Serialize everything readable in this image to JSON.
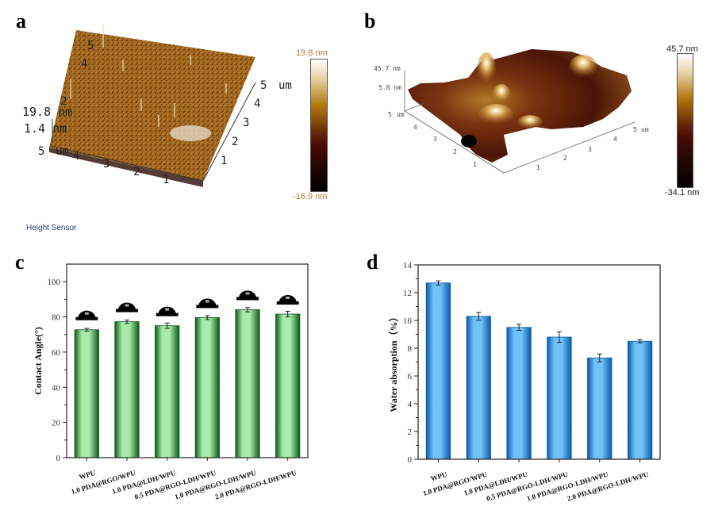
{
  "panels": {
    "a": {
      "letter": "a",
      "type": "afm-3d",
      "z_top_label": "19.8 nm",
      "z_mid_label": "1.4 nm",
      "x_axis_ticks": [
        "1",
        "2",
        "3",
        "4",
        "5"
      ],
      "x_axis_unit": "um",
      "y_axis_ticks": [
        "1",
        "2",
        "3",
        "4",
        "5"
      ],
      "y_axis_unit": "um",
      "colorbar_max": "19.8 nm",
      "colorbar_min": "-16.9 nm",
      "footer": "Height Sensor"
    },
    "b": {
      "letter": "b",
      "type": "afm-3d",
      "z_top_label": "45.7 nm",
      "z_mid_label": "5.8 nm",
      "x_axis_ticks": [
        "1",
        "2",
        "3",
        "4",
        "5"
      ],
      "x_axis_unit": "um",
      "y_axis_ticks": [
        "1",
        "2",
        "3",
        "4",
        "5"
      ],
      "y_axis_unit": "um",
      "colorbar_max": "45.7 nm",
      "colorbar_min": "-34.1 nm"
    },
    "c": {
      "letter": "c"
    },
    "d": {
      "letter": "d"
    }
  },
  "colors": {
    "green_dark": "#0e5a1c",
    "green_light": "#a8ecaa",
    "blue_dark": "#0a5aa8",
    "blue_light": "#72c2fa",
    "afm_colormap": [
      "#000000",
      "#3a0a04",
      "#6a1a06",
      "#9a5a10",
      "#c48a28",
      "#e8c88a",
      "#ffffff"
    ]
  },
  "chart_data": [
    {
      "id": "c",
      "type": "bar",
      "title": "",
      "xlabel": "",
      "ylabel": "Contact Angle(°)",
      "categories": [
        "WPU",
        "1.0 PDA@RGO/WPU",
        "1.0 PDA@LDH/WPU",
        "0.5 PDA@RGO-LDH/WPU",
        "1.0 PDA@RGO-LDH/WPU",
        "2.0 PDA@RGO-LDH/WPU"
      ],
      "values": [
        72.7,
        77.3,
        75.0,
        79.6,
        84.1,
        81.6
      ],
      "errors": [
        0.8,
        1.0,
        1.5,
        1.1,
        1.2,
        1.6
      ],
      "ylim": [
        0,
        110
      ],
      "yticks": [
        0,
        20,
        40,
        60,
        80,
        100
      ],
      "annotations": "water droplet images above each bar",
      "grid": false,
      "legend": "none"
    },
    {
      "id": "d",
      "type": "bar",
      "title": "",
      "xlabel": "",
      "ylabel": "Water absorption（%）",
      "categories": [
        "WPU",
        "1.0 PDA@RGO/WPU",
        "1.0 PDA@LDH/WPU",
        "0.5 PDA@RGO-LDH/WPU",
        "1.0 PDA@RGO-LDH/WPU",
        "2.0 PDA@RGO-LDH/WPU"
      ],
      "values": [
        12.7,
        10.3,
        9.5,
        8.8,
        7.3,
        8.5
      ],
      "errors": [
        0.15,
        0.28,
        0.22,
        0.38,
        0.28,
        0.12
      ],
      "ylim": [
        0,
        14
      ],
      "yticks": [
        0,
        2,
        4,
        6,
        8,
        10,
        12,
        14
      ],
      "grid": false,
      "legend": "none"
    }
  ]
}
